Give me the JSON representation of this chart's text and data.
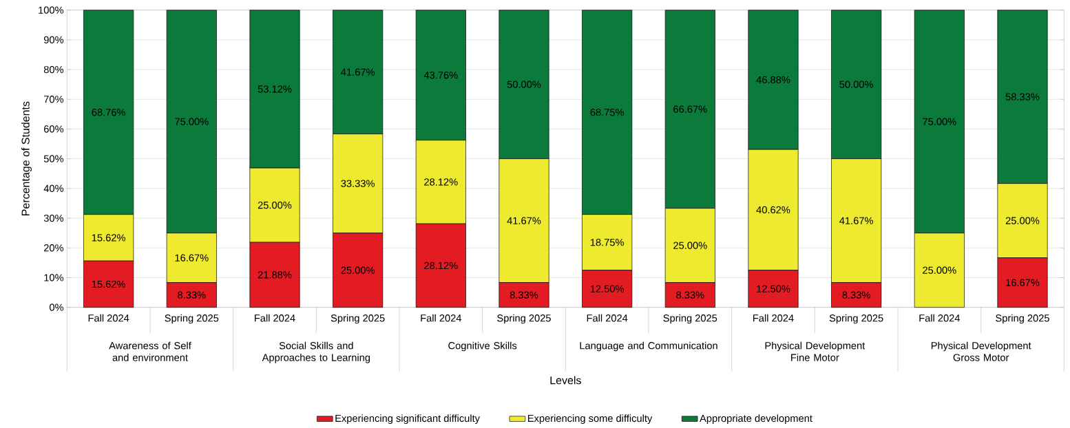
{
  "chart_data": {
    "type": "bar",
    "stacked": true,
    "xlabel": "Levels",
    "ylabel": "Percentage of Students",
    "categories": [
      "Fall 2024",
      "Spring 2025",
      "Fall 2024",
      "Spring 2025",
      "Fall 2024",
      "Spring 2025",
      "Fall 2024",
      "Spring 2025",
      "Fall 2024",
      "Spring 2025",
      "Fall 2024",
      "Spring 2025"
    ],
    "annotations": [
      "Awareness of Self and environment",
      "Social Skills and Approaches to Learning",
      "Cognitive Skills",
      "Language and Communication",
      "Physical Development Fine Motor",
      "Physical Development Gross Motor"
    ],
    "series": [
      {
        "name": "Experiencing significant difficulty",
        "color": "#e31b23",
        "values": [
          15.62,
          8.33,
          21.88,
          25.0,
          28.12,
          8.33,
          12.5,
          8.33,
          12.5,
          8.33,
          0,
          16.67
        ],
        "value_labels": [
          "15.62%",
          "8.33%",
          "21.88%",
          "25.00%",
          "28.12%",
          "8.33%",
          "12.50%",
          "8.33%",
          "12.50%",
          "8.33%",
          null,
          "16.67%"
        ]
      },
      {
        "name": "Experiencing some difficulty",
        "color": "#eeea30",
        "values": [
          15.62,
          16.67,
          25.0,
          33.33,
          28.12,
          41.67,
          18.75,
          25.0,
          40.62,
          41.67,
          25.0,
          25.0
        ],
        "value_labels": [
          "15.62%",
          "16.67%",
          "25.00%",
          "33.33%",
          "28.12%",
          "41.67%",
          "18.75%",
          "25.00%",
          "40.62%",
          "41.67%",
          "25.00%",
          "25.00%"
        ]
      },
      {
        "name": "Appropriate development",
        "color": "#0b7a3b",
        "values": [
          68.76,
          75.0,
          53.12,
          41.67,
          43.76,
          50.0,
          68.75,
          66.67,
          46.88,
          50.0,
          75.0,
          58.33
        ],
        "value_labels": [
          "68.76%",
          "75.00%",
          "53.12%",
          "41.67%",
          "43.76%",
          "50.00%",
          "68.75%",
          "66.67%",
          "46.88%",
          "50.00%",
          "75.00%",
          "58.33%"
        ]
      }
    ],
    "ylim": [
      0,
      100
    ],
    "yticks": [
      {
        "value": 0,
        "label": "0%"
      },
      {
        "value": 10,
        "label": "10%"
      },
      {
        "value": 20,
        "label": "20%"
      },
      {
        "value": 30,
        "label": "30%"
      },
      {
        "value": 40,
        "label": "40%"
      },
      {
        "value": 50,
        "label": "50%"
      },
      {
        "value": 60,
        "label": "60%"
      },
      {
        "value": 70,
        "label": "70%"
      },
      {
        "value": 80,
        "label": "80%"
      },
      {
        "value": 90,
        "label": "90%"
      },
      {
        "value": 100,
        "label": "100%"
      }
    ],
    "grid": "y",
    "legend": "bottom"
  }
}
